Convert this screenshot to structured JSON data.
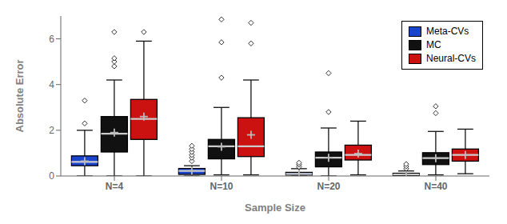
{
  "chart_data": {
    "type": "box",
    "xlabel": "Sample Size",
    "ylabel": "Absolute Error",
    "categories": [
      "N=4",
      "N=10",
      "N=20",
      "N=40"
    ],
    "series": [
      {
        "name": "Meta-CVs",
        "color": "#1a44cc",
        "values": [
          {
            "whislo": 0.0,
            "q1": 0.45,
            "median": 0.62,
            "q3": 0.88,
            "whishi": 2.0,
            "fliers": [
              2.3,
              3.3
            ],
            "mean": 0.65
          },
          {
            "whislo": 0.0,
            "q1": 0.07,
            "median": 0.22,
            "q3": 0.33,
            "whishi": 0.45,
            "fliers": [
              0.65,
              0.8,
              0.92,
              1.05,
              1.18,
              1.32
            ],
            "mean": 0.23
          },
          {
            "whislo": 0.0,
            "q1": 0.04,
            "median": 0.09,
            "q3": 0.16,
            "whishi": 0.32,
            "fliers": [
              0.4,
              0.5,
              0.58
            ],
            "mean": 0.1
          },
          {
            "whislo": 0.0,
            "q1": 0.02,
            "median": 0.07,
            "q3": 0.12,
            "whishi": 0.22,
            "fliers": [
              0.32,
              0.42,
              0.52
            ],
            "mean": 0.08
          }
        ]
      },
      {
        "name": "MC",
        "color": "#111111",
        "values": [
          {
            "whislo": 0.0,
            "q1": 1.05,
            "median": 1.85,
            "q3": 2.6,
            "whishi": 4.2,
            "fliers": [
              4.8,
              5.0,
              5.15,
              6.3
            ],
            "mean": 1.9
          },
          {
            "whislo": 0.05,
            "q1": 0.75,
            "median": 1.3,
            "q3": 1.6,
            "whishi": 3.0,
            "fliers": [
              4.3,
              5.85,
              6.85
            ],
            "mean": 1.28
          },
          {
            "whislo": 0.0,
            "q1": 0.4,
            "median": 0.8,
            "q3": 1.05,
            "whishi": 2.1,
            "fliers": [
              2.8,
              4.5
            ],
            "mean": 0.8
          },
          {
            "whislo": 0.05,
            "q1": 0.5,
            "median": 0.78,
            "q3": 1.02,
            "whishi": 1.95,
            "fliers": [
              2.75,
              3.05
            ],
            "mean": 0.78
          }
        ]
      },
      {
        "name": "Neural-CVs",
        "color": "#cc1111",
        "values": [
          {
            "whislo": 0.0,
            "q1": 1.6,
            "median": 2.5,
            "q3": 3.35,
            "whishi": 5.9,
            "fliers": [
              6.3
            ],
            "mean": 2.6
          },
          {
            "whislo": 0.05,
            "q1": 0.85,
            "median": 1.3,
            "q3": 2.55,
            "whishi": 4.2,
            "fliers": [
              5.8,
              6.7
            ],
            "mean": 1.8
          },
          {
            "whislo": 0.05,
            "q1": 0.7,
            "median": 0.92,
            "q3": 1.35,
            "whishi": 2.4,
            "fliers": [],
            "mean": 0.98
          },
          {
            "whislo": 0.1,
            "q1": 0.65,
            "median": 0.92,
            "q3": 1.18,
            "whishi": 2.05,
            "fliers": [],
            "mean": 0.92
          }
        ]
      }
    ],
    "ylim": [
      0.0,
      7.0
    ],
    "yticks": [
      0,
      2,
      4,
      6
    ],
    "grid": false,
    "legend": "upper right"
  }
}
